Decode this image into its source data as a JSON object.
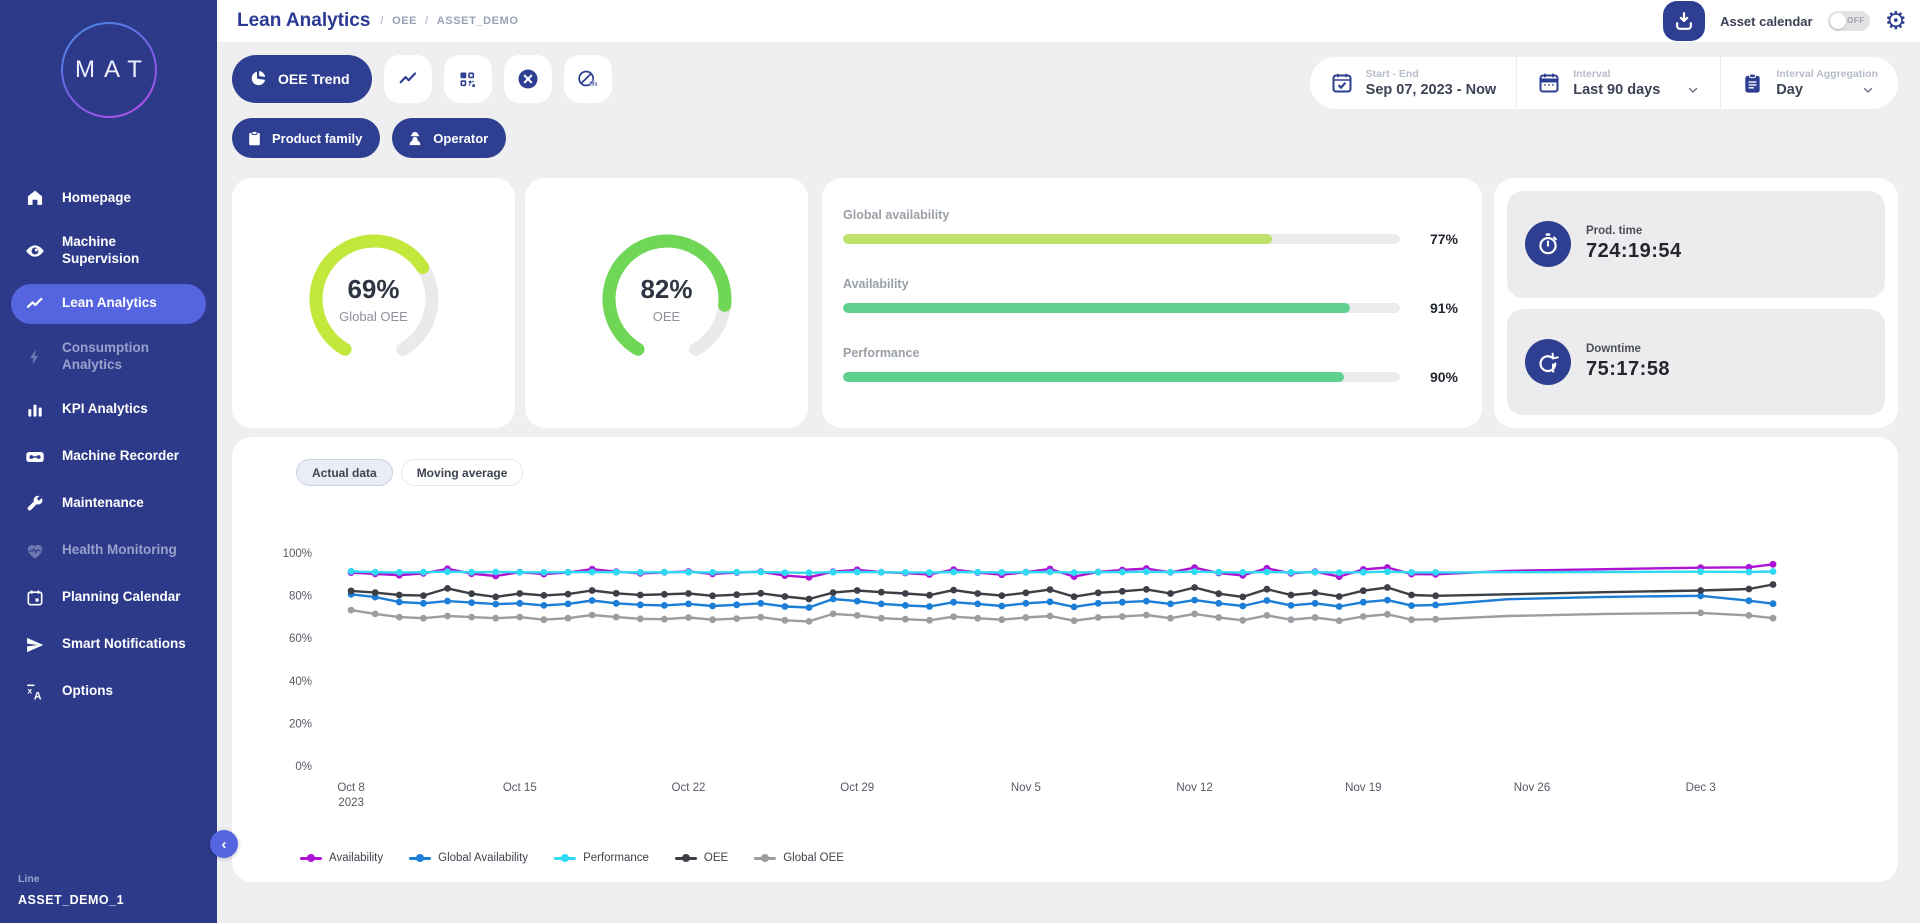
{
  "app": {
    "logo_text": "MAT"
  },
  "theme": {
    "accent": "#2e3f92",
    "sidebar_bg": "#2d3a8a",
    "active_item_bg": "#5565e0",
    "page_bg": "#efeff1",
    "card_bg": "#ffffff",
    "lime": "#c3e83c",
    "green": "#6fd656"
  },
  "header": {
    "title": "Lean Analytics",
    "breadcrumb": [
      "OEE",
      "ASSET_DEMO"
    ],
    "asset_calendar_label": "Asset calendar",
    "toggle_state": "OFF"
  },
  "sidebar": {
    "items": [
      {
        "label": "Homepage",
        "icon": "home-icon"
      },
      {
        "label": "Machine Supervision",
        "icon": "eye-icon"
      },
      {
        "label": "Lean Analytics",
        "icon": "trend-icon",
        "active": true
      },
      {
        "label": "Consumption Analytics",
        "icon": "lightning-icon",
        "dimmed": true
      },
      {
        "label": "KPI Analytics",
        "icon": "bar-chart-icon"
      },
      {
        "label": "Machine Recorder",
        "icon": "recorder-icon"
      },
      {
        "label": "Maintenance",
        "icon": "wrench-icon"
      },
      {
        "label": "Health Monitoring",
        "icon": "heart-pulse-icon",
        "dimmed": true
      },
      {
        "label": "Planning Calendar",
        "icon": "calendar-icon"
      },
      {
        "label": "Smart Notifications",
        "icon": "send-icon"
      },
      {
        "label": "Options",
        "icon": "translate-icon"
      }
    ],
    "footer": {
      "line_label": "Line",
      "asset_name": "ASSET_DEMO_1"
    }
  },
  "toolbar": {
    "primary_button": "OEE Trend",
    "icon_buttons": [
      "trend-chart-icon",
      "widget-grid-icon",
      "close-circle-icon",
      "no-data-chart-icon"
    ],
    "filters": [
      {
        "label": "Product family",
        "icon": "clipboard-icon"
      },
      {
        "label": "Operator",
        "icon": "operator-icon"
      }
    ],
    "date_field": {
      "label": "Start - End",
      "value": "Sep 07, 2023 - Now",
      "icon": "calendar-check-icon"
    },
    "interval_field": {
      "label": "Interval",
      "value": "Last 90 days",
      "icon": "calendar-blank-icon"
    },
    "aggregation_field": {
      "label": "Interval Aggregation",
      "value": "Day",
      "icon": "clipboard-list-icon"
    }
  },
  "kpis": {
    "gauges": [
      {
        "value": 69,
        "display": "69%",
        "label": "Global OEE",
        "color": "#c3e83c"
      },
      {
        "value": 82,
        "display": "82%",
        "label": "OEE",
        "color": "#6fd656"
      }
    ],
    "bars": [
      {
        "label": "Global availability",
        "value": 77,
        "display": "77%",
        "color": "#bfe36a"
      },
      {
        "label": "Availability",
        "value": 91,
        "display": "91%",
        "color": "#5fd08d"
      },
      {
        "label": "Performance",
        "value": 90,
        "display": "90%",
        "color": "#5fd08d"
      }
    ],
    "times": [
      {
        "label": "Prod. time",
        "value": "724:19:54",
        "icon": "stopwatch-icon"
      },
      {
        "label": "Downtime",
        "value": "75:17:58",
        "icon": "downtime-icon"
      }
    ]
  },
  "chart": {
    "tabs": [
      {
        "label": "Actual data",
        "active": true
      },
      {
        "label": "Moving average",
        "active": false
      }
    ]
  },
  "chart_data": {
    "type": "line",
    "title": "",
    "xlabel": "",
    "ylabel": "",
    "ylim": [
      0,
      100
    ],
    "grid": false,
    "legend_position": "bottom",
    "y_suffix": "%",
    "y_ticks": [
      100,
      80,
      60,
      40,
      20,
      0
    ],
    "x_ticks": [
      {
        "day": 1,
        "label": "Oct 8",
        "sub": "2023"
      },
      {
        "day": 8,
        "label": "Oct 15"
      },
      {
        "day": 15,
        "label": "Oct 22"
      },
      {
        "day": 22,
        "label": "Oct 29"
      },
      {
        "day": 29,
        "label": "Nov 5"
      },
      {
        "day": 36,
        "label": "Nov 12"
      },
      {
        "day": 43,
        "label": "Nov 19"
      },
      {
        "day": 50,
        "label": "Nov 26"
      },
      {
        "day": 57,
        "label": "Dec 3"
      }
    ],
    "marker_until_day": 46,
    "marker_from_day": 57,
    "series": [
      {
        "id": "availability",
        "name": "Availability",
        "color": "#ae12d4",
        "points": [
          [
            1,
            90.8
          ],
          [
            2,
            90.2
          ],
          [
            3,
            89.6
          ],
          [
            4,
            90.4
          ],
          [
            5,
            92.6
          ],
          [
            6,
            90.3
          ],
          [
            7,
            89.2
          ],
          [
            8,
            91.0
          ],
          [
            9,
            90.1
          ],
          [
            10,
            90.9
          ],
          [
            11,
            92.4
          ],
          [
            12,
            91.2
          ],
          [
            13,
            90.4
          ],
          [
            14,
            90.9
          ],
          [
            15,
            91.3
          ],
          [
            16,
            90.2
          ],
          [
            17,
            90.8
          ],
          [
            18,
            91.2
          ],
          [
            19,
            89.4
          ],
          [
            20,
            88.6
          ],
          [
            21,
            91.2
          ],
          [
            22,
            92.1
          ],
          [
            23,
            91.0
          ],
          [
            24,
            90.6
          ],
          [
            25,
            89.9
          ],
          [
            26,
            92.2
          ],
          [
            27,
            90.8
          ],
          [
            28,
            89.8
          ],
          [
            29,
            91.0
          ],
          [
            30,
            92.5
          ],
          [
            31,
            88.9
          ],
          [
            32,
            91.1
          ],
          [
            33,
            92.0
          ],
          [
            34,
            92.7
          ],
          [
            35,
            90.9
          ],
          [
            36,
            93.1
          ],
          [
            37,
            90.6
          ],
          [
            38,
            89.5
          ],
          [
            39,
            92.8
          ],
          [
            40,
            90.4
          ],
          [
            41,
            91.2
          ],
          [
            42,
            88.9
          ],
          [
            43,
            92.3
          ],
          [
            44,
            93.2
          ],
          [
            45,
            90.1
          ],
          [
            46,
            90.0
          ],
          [
            49,
            91.6
          ],
          [
            53,
            92.4
          ],
          [
            57,
            93.1
          ],
          [
            59,
            93.3
          ],
          [
            60,
            94.7
          ]
        ]
      },
      {
        "id": "global-availability",
        "name": "Global Availability",
        "color": "#1c7ed6",
        "points": [
          [
            1,
            80.6
          ],
          [
            2,
            79.3
          ],
          [
            3,
            77.0
          ],
          [
            4,
            76.4
          ],
          [
            5,
            77.4
          ],
          [
            6,
            76.7
          ],
          [
            7,
            76.0
          ],
          [
            8,
            76.4
          ],
          [
            9,
            75.4
          ],
          [
            10,
            76.1
          ],
          [
            11,
            77.7
          ],
          [
            12,
            76.4
          ],
          [
            13,
            75.7
          ],
          [
            14,
            75.4
          ],
          [
            15,
            76.1
          ],
          [
            16,
            75.1
          ],
          [
            17,
            75.7
          ],
          [
            18,
            76.4
          ],
          [
            19,
            74.9
          ],
          [
            20,
            74.4
          ],
          [
            21,
            78.4
          ],
          [
            22,
            77.4
          ],
          [
            23,
            76.1
          ],
          [
            24,
            75.4
          ],
          [
            25,
            74.9
          ],
          [
            26,
            76.9
          ],
          [
            27,
            76.1
          ],
          [
            28,
            75.1
          ],
          [
            29,
            76.4
          ],
          [
            30,
            77.1
          ],
          [
            31,
            74.7
          ],
          [
            32,
            76.4
          ],
          [
            33,
            76.9
          ],
          [
            34,
            77.4
          ],
          [
            35,
            76.1
          ],
          [
            36,
            77.9
          ],
          [
            37,
            76.4
          ],
          [
            38,
            75.1
          ],
          [
            39,
            77.7
          ],
          [
            40,
            75.4
          ],
          [
            41,
            76.4
          ],
          [
            42,
            74.9
          ],
          [
            43,
            76.9
          ],
          [
            44,
            77.9
          ],
          [
            45,
            75.3
          ],
          [
            46,
            75.6
          ],
          [
            49,
            78.3
          ],
          [
            53,
            79.4
          ],
          [
            57,
            79.9
          ],
          [
            59,
            77.6
          ],
          [
            60,
            76.2
          ]
        ]
      },
      {
        "id": "performance",
        "name": "Performance",
        "color": "#2fd9f2",
        "points": [
          [
            1,
            91.4
          ],
          [
            2,
            91.0
          ],
          [
            3,
            90.9
          ],
          [
            4,
            91.0
          ],
          [
            5,
            91.2
          ],
          [
            6,
            91.0
          ],
          [
            7,
            91.1
          ],
          [
            8,
            91.0
          ],
          [
            9,
            90.9
          ],
          [
            10,
            91.0
          ],
          [
            11,
            91.1
          ],
          [
            12,
            91.0
          ],
          [
            13,
            90.9
          ],
          [
            14,
            91.0
          ],
          [
            15,
            91.0
          ],
          [
            16,
            90.9
          ],
          [
            17,
            91.0
          ],
          [
            18,
            91.1
          ],
          [
            19,
            90.8
          ],
          [
            20,
            90.7
          ],
          [
            21,
            91.0
          ],
          [
            22,
            91.1
          ],
          [
            23,
            91.0
          ],
          [
            24,
            90.9
          ],
          [
            25,
            90.8
          ],
          [
            26,
            91.1
          ],
          [
            27,
            91.0
          ],
          [
            28,
            90.9
          ],
          [
            29,
            91.0
          ],
          [
            30,
            91.1
          ],
          [
            31,
            90.8
          ],
          [
            32,
            91.0
          ],
          [
            33,
            91.1
          ],
          [
            34,
            91.2
          ],
          [
            35,
            91.0
          ],
          [
            36,
            91.2
          ],
          [
            37,
            91.0
          ],
          [
            38,
            90.9
          ],
          [
            39,
            91.1
          ],
          [
            40,
            90.9
          ],
          [
            41,
            91.0
          ],
          [
            42,
            90.8
          ],
          [
            43,
            91.0
          ],
          [
            44,
            91.2
          ],
          [
            45,
            90.9
          ],
          [
            46,
            90.9
          ],
          [
            49,
            91.0
          ],
          [
            53,
            91.1
          ],
          [
            57,
            91.2
          ],
          [
            59,
            91.1
          ],
          [
            60,
            91.3
          ]
        ]
      },
      {
        "id": "oee",
        "name": "OEE",
        "color": "#3c3f45",
        "points": [
          [
            1,
            82.2
          ],
          [
            2,
            81.4
          ],
          [
            3,
            80.3
          ],
          [
            4,
            80.0
          ],
          [
            5,
            83.4
          ],
          [
            6,
            80.9
          ],
          [
            7,
            79.4
          ],
          [
            8,
            81.0
          ],
          [
            9,
            80.1
          ],
          [
            10,
            80.7
          ],
          [
            11,
            82.4
          ],
          [
            12,
            81.1
          ],
          [
            13,
            80.3
          ],
          [
            14,
            80.6
          ],
          [
            15,
            81.0
          ],
          [
            16,
            79.9
          ],
          [
            17,
            80.4
          ],
          [
            18,
            81.1
          ],
          [
            19,
            79.6
          ],
          [
            20,
            78.4
          ],
          [
            21,
            81.4
          ],
          [
            22,
            82.4
          ],
          [
            23,
            81.6
          ],
          [
            24,
            81.0
          ],
          [
            25,
            80.2
          ],
          [
            26,
            82.6
          ],
          [
            27,
            81.0
          ],
          [
            28,
            80.0
          ],
          [
            29,
            81.3
          ],
          [
            30,
            82.8
          ],
          [
            31,
            79.5
          ],
          [
            32,
            81.3
          ],
          [
            33,
            82.0
          ],
          [
            34,
            82.9
          ],
          [
            35,
            81.0
          ],
          [
            36,
            83.8
          ],
          [
            37,
            80.9
          ],
          [
            38,
            79.4
          ],
          [
            39,
            83.0
          ],
          [
            40,
            80.3
          ],
          [
            41,
            81.3
          ],
          [
            42,
            79.6
          ],
          [
            43,
            82.3
          ],
          [
            44,
            83.8
          ],
          [
            45,
            80.3
          ],
          [
            46,
            79.9
          ],
          [
            49,
            80.6
          ],
          [
            53,
            81.6
          ],
          [
            57,
            82.4
          ],
          [
            59,
            83.1
          ],
          [
            60,
            85.2
          ]
        ]
      },
      {
        "id": "global-oee",
        "name": "Global OEE",
        "color": "#9b9da1",
        "points": [
          [
            1,
            73.2
          ],
          [
            2,
            71.4
          ],
          [
            3,
            69.9
          ],
          [
            4,
            69.4
          ],
          [
            5,
            70.4
          ],
          [
            6,
            69.9
          ],
          [
            7,
            69.4
          ],
          [
            8,
            69.9
          ],
          [
            9,
            68.7
          ],
          [
            10,
            69.4
          ],
          [
            11,
            70.9
          ],
          [
            12,
            69.9
          ],
          [
            13,
            69.1
          ],
          [
            14,
            68.9
          ],
          [
            15,
            69.7
          ],
          [
            16,
            68.7
          ],
          [
            17,
            69.2
          ],
          [
            18,
            69.9
          ],
          [
            19,
            68.4
          ],
          [
            20,
            67.9
          ],
          [
            21,
            71.4
          ],
          [
            22,
            70.7
          ],
          [
            23,
            69.4
          ],
          [
            24,
            68.9
          ],
          [
            25,
            68.4
          ],
          [
            26,
            70.1
          ],
          [
            27,
            69.4
          ],
          [
            28,
            68.7
          ],
          [
            29,
            69.7
          ],
          [
            30,
            70.4
          ],
          [
            31,
            68.2
          ],
          [
            32,
            69.7
          ],
          [
            33,
            70.2
          ],
          [
            34,
            70.9
          ],
          [
            35,
            69.4
          ],
          [
            36,
            71.4
          ],
          [
            37,
            69.7
          ],
          [
            38,
            68.4
          ],
          [
            39,
            70.7
          ],
          [
            40,
            68.7
          ],
          [
            41,
            69.7
          ],
          [
            42,
            68.2
          ],
          [
            43,
            70.2
          ],
          [
            44,
            71.2
          ],
          [
            45,
            68.7
          ],
          [
            46,
            68.9
          ],
          [
            49,
            70.4
          ],
          [
            53,
            71.4
          ],
          [
            57,
            71.9
          ],
          [
            59,
            70.7
          ],
          [
            60,
            69.4
          ]
        ]
      }
    ]
  }
}
